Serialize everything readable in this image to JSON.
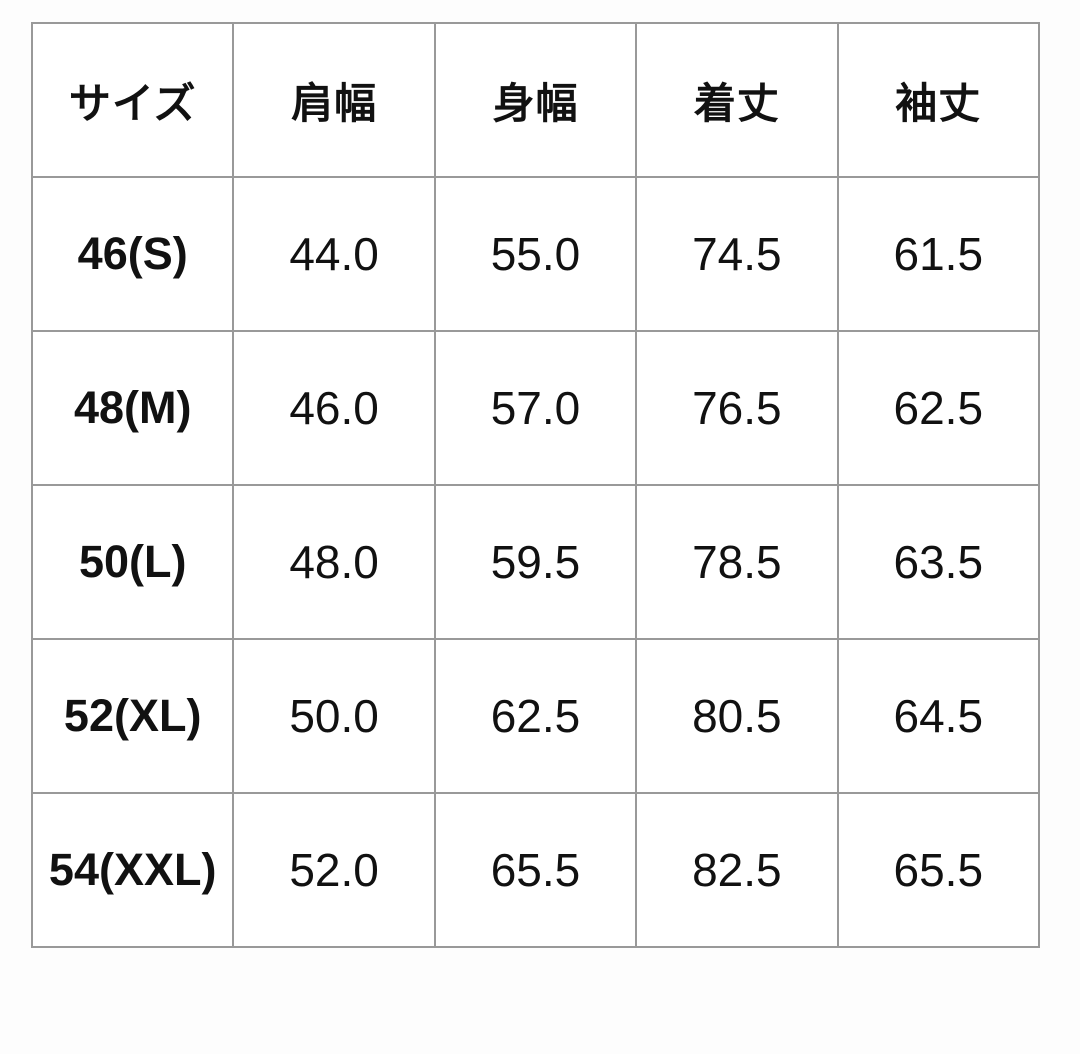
{
  "table": {
    "columns": [
      "サイズ",
      "肩幅",
      "身幅",
      "着丈",
      "袖丈"
    ],
    "rows": [
      [
        "46(S)",
        "44.0",
        "55.0",
        "74.5",
        "61.5"
      ],
      [
        "48(M)",
        "46.0",
        "57.0",
        "76.5",
        "62.5"
      ],
      [
        "50(L)",
        "48.0",
        "59.5",
        "78.5",
        "63.5"
      ],
      [
        "52(XL)",
        "50.0",
        "62.5",
        "80.5",
        "64.5"
      ],
      [
        "54(XXL)",
        "52.0",
        "65.5",
        "82.5",
        "65.5"
      ]
    ],
    "colors": {
      "border": "#999999",
      "text": "#111111",
      "cell_background": "#ffffff",
      "page_background": "#fdfdfd"
    }
  }
}
